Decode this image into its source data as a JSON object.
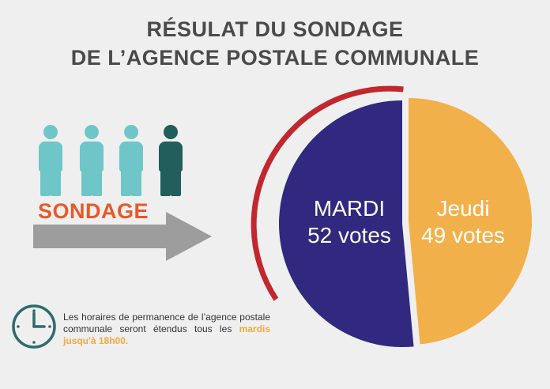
{
  "title": {
    "line1": "RÉSULAT DU SONDAGE",
    "line2": "DE L’AGENCE POSTALE COMMUNALE"
  },
  "sondage_label": "SONDAGE",
  "note": {
    "text_part1": "Les horaires de permanence de l’agence postale communale seront étendus tous les ",
    "highlight": "mardis jusqu'à 18h00."
  },
  "colors": {
    "people_light": "#6ec6c9",
    "people_dark": "#215e5c",
    "mardi": "#31297f",
    "jeudi": "#f2b04a",
    "accent_arc": "#c1272d",
    "title": "#4a4a4a",
    "sondage": "#e55a2b",
    "arrow": "#9d9d9d",
    "clock": "#2e6b6b"
  },
  "icons": [
    "person-icon",
    "arrow-right-icon",
    "clock-icon"
  ],
  "chart_data": {
    "type": "pie",
    "title": "RÉSULAT DU SONDAGE DE L’AGENCE POSTALE COMMUNALE",
    "slices": [
      {
        "label": "MARDI",
        "value": 52,
        "value_label": "52 votes",
        "color": "#31297f"
      },
      {
        "label": "Jeudi",
        "value": 49,
        "value_label": "49 votes",
        "color": "#f2b04a"
      }
    ]
  }
}
